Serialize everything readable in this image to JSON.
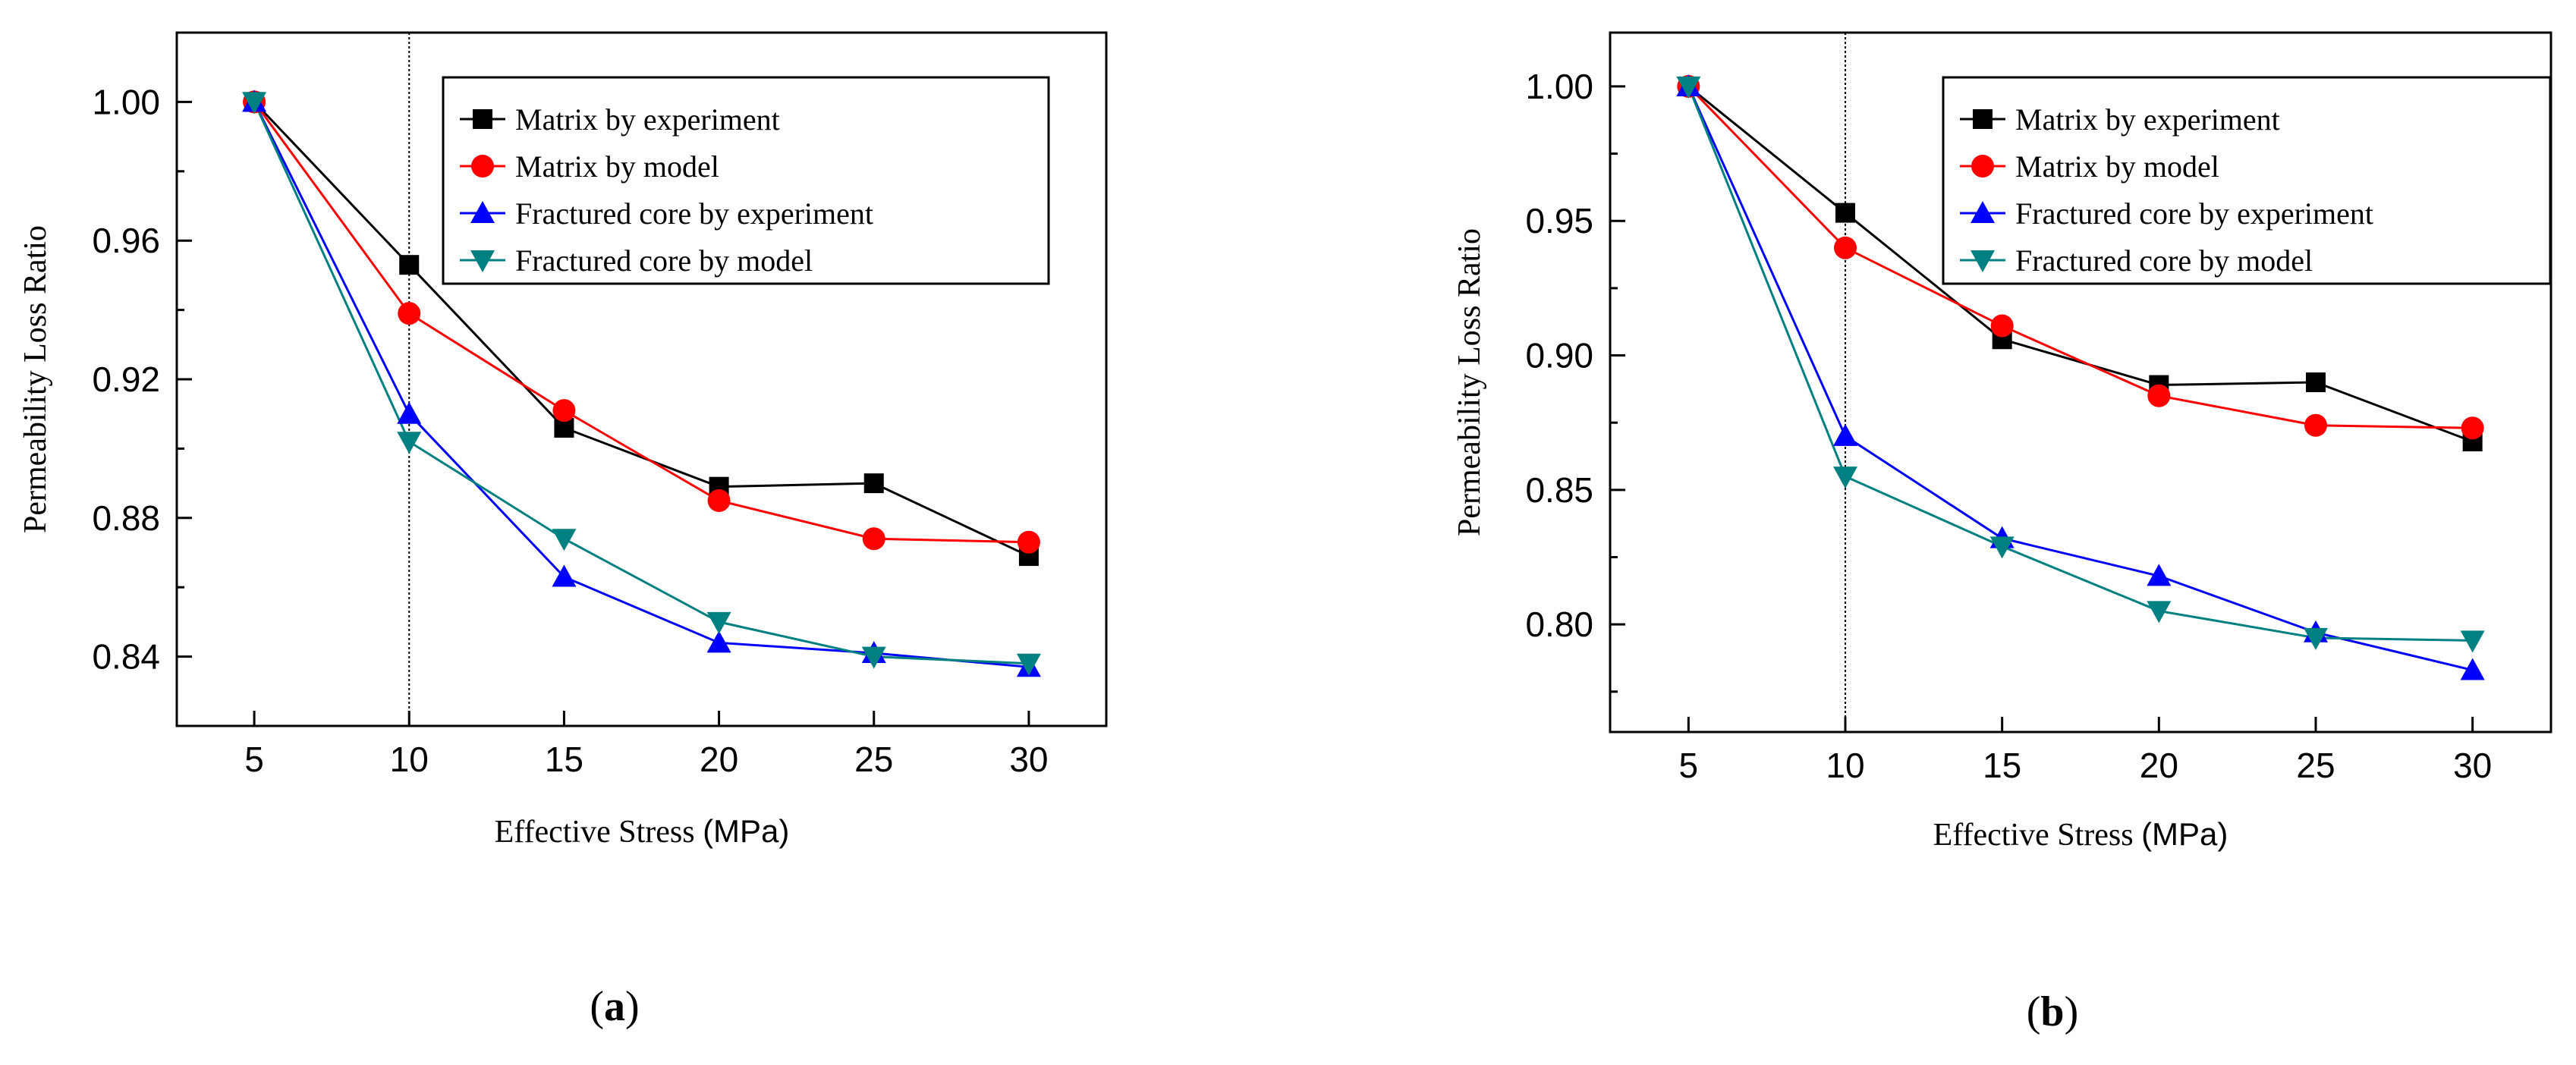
{
  "chart_data": [
    {
      "type": "line",
      "panel_label": {
        "open": "(",
        "letter": "a",
        "close": ")"
      },
      "xlabel": {
        "text": "Effective Stress ",
        "unit": "(MPa)"
      },
      "ylabel": "Permeability Loss Ratio",
      "x": [
        5,
        10,
        15,
        20,
        25,
        30
      ],
      "xlim": [
        2.5,
        32.5
      ],
      "ylim": [
        0.82,
        1.02
      ],
      "xticks": [
        5,
        10,
        15,
        20,
        25,
        30
      ],
      "yticks": [
        0.84,
        0.88,
        0.92,
        0.96,
        1.0
      ],
      "ytick_labels": [
        "0.84",
        "0.88",
        "0.92",
        "0.96",
        "1.00"
      ],
      "vline_x": 10,
      "legend_position": "top-right",
      "series": [
        {
          "name": "Matrix by experiment",
          "marker": "square",
          "color": "#000000",
          "values": [
            1.0,
            0.953,
            0.906,
            0.889,
            0.89,
            0.869
          ]
        },
        {
          "name": "Matrix by model",
          "marker": "circle",
          "color": "#ff0000",
          "values": [
            1.0,
            0.939,
            0.911,
            0.885,
            0.874,
            0.873
          ]
        },
        {
          "name": "Fractured core by experiment",
          "marker": "triangle-up",
          "color": "#0000ff",
          "values": [
            1.0,
            0.91,
            0.863,
            0.844,
            0.841,
            0.837
          ]
        },
        {
          "name": "Fractured core by model",
          "marker": "triangle-down",
          "color": "#008080",
          "values": [
            1.0,
            0.902,
            0.874,
            0.85,
            0.84,
            0.838
          ]
        }
      ]
    },
    {
      "type": "line",
      "panel_label": {
        "open": "(",
        "letter": "b",
        "close": ")"
      },
      "xlabel": {
        "text": "Effective Stress ",
        "unit": "(MPa)"
      },
      "ylabel": "Permeability Loss Ratio",
      "x": [
        5,
        10,
        15,
        20,
        25,
        30
      ],
      "xlim": [
        2.5,
        32.5
      ],
      "ylim": [
        0.76,
        1.02
      ],
      "xticks": [
        5,
        10,
        15,
        20,
        25,
        30
      ],
      "yticks": [
        0.8,
        0.85,
        0.9,
        0.95,
        1.0
      ],
      "ytick_labels": [
        "0.80",
        "0.85",
        "0.90",
        "0.95",
        "1.00"
      ],
      "vline_x": 10,
      "legend_position": "top-right",
      "series": [
        {
          "name": "Matrix by experiment",
          "marker": "square",
          "color": "#000000",
          "values": [
            1.0,
            0.953,
            0.906,
            0.889,
            0.89,
            0.868
          ]
        },
        {
          "name": "Matrix by model",
          "marker": "circle",
          "color": "#ff0000",
          "values": [
            1.0,
            0.94,
            0.911,
            0.885,
            0.874,
            0.873
          ]
        },
        {
          "name": "Fractured core by experiment",
          "marker": "triangle-up",
          "color": "#0000ff",
          "values": [
            1.0,
            0.87,
            0.832,
            0.818,
            0.797,
            0.783
          ]
        },
        {
          "name": "Fractured core by model",
          "marker": "triangle-down",
          "color": "#008080",
          "values": [
            1.0,
            0.855,
            0.829,
            0.805,
            0.795,
            0.794
          ]
        }
      ]
    }
  ]
}
